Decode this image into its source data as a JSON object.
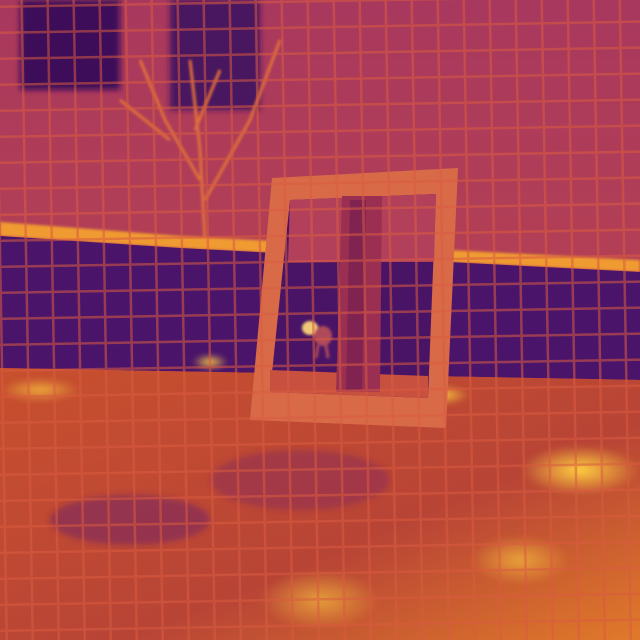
{
  "image": {
    "kind": "thermal-camera-photo",
    "palette": [
      "#2a0a4a",
      "#5a1670",
      "#9a2f6a",
      "#d4583e",
      "#f08a2a",
      "#ffd040"
    ],
    "subjects": [
      "wire-mesh-fence",
      "trees",
      "low-wall",
      "window-frame",
      "tree-trunk",
      "small-animal",
      "ground"
    ]
  }
}
